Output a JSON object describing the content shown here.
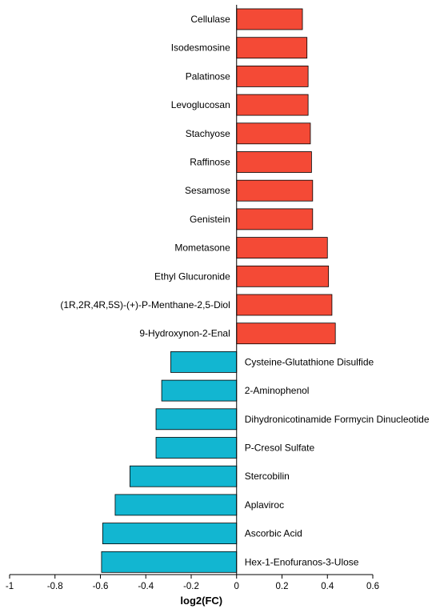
{
  "chart_data": {
    "type": "bar",
    "orientation": "horizontal",
    "xlabel": "log2(FC)",
    "xlim": [
      -1,
      0.6
    ],
    "xticks": [
      "-1",
      "-0.8",
      "-0.6",
      "-0.4",
      "-0.2",
      "0",
      "0.2",
      "0.4",
      "0.6"
    ],
    "colors": {
      "positive": "#f44a36",
      "negative": "#12b6d1"
    },
    "categories": [
      "Cellulase",
      "Isodesmosine",
      "Palatinose",
      "Levoglucosan",
      "Stachyose",
      "Raffinose",
      "Sesamose",
      "Genistein",
      "Mometasone",
      "Ethyl Glucuronide",
      "(1R,2R,4R,5S)-(+)-P-Menthane-2,5-Diol",
      "9-Hydroxynon-2-Enal",
      "Cysteine-Glutathione Disulfide",
      "2-Aminophenol",
      "Dihydronicotinamide Formycin Dinucleotide",
      "P-Cresol Sulfate",
      "Stercobilin",
      "Aplaviroc",
      "Ascorbic Acid",
      "Hex-1-Enofuranos-3-Ulose"
    ],
    "values": [
      0.29,
      0.31,
      0.315,
      0.315,
      0.325,
      0.33,
      0.335,
      0.335,
      0.4,
      0.405,
      0.42,
      0.435,
      -0.29,
      -0.33,
      -0.355,
      -0.355,
      -0.47,
      -0.535,
      -0.59,
      -0.595
    ]
  }
}
